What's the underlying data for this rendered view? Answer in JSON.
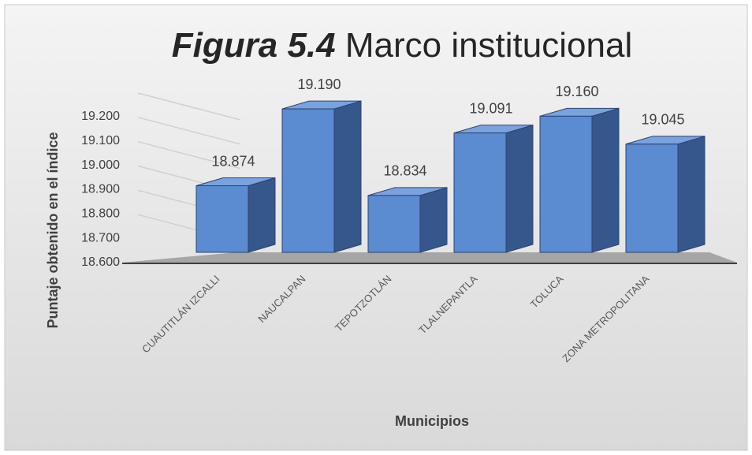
{
  "chart_data": {
    "type": "bar3d",
    "figure_label": "Figura 5.4",
    "title": "Marco institucional",
    "x_label": "Municipios",
    "y_label": "Puntaje obtenido  en el índice",
    "categories": [
      "CUAUTITLÁN IZCALLI",
      "NAUCALPAN",
      "TEPOTZOTLÁN",
      "TLALNEPANTLA",
      "TOLUCA",
      "ZONA METROPOLITANA"
    ],
    "values": [
      18.874,
      19.19,
      18.834,
      19.091,
      19.16,
      19.045
    ],
    "value_labels": [
      "18.874",
      "19.190",
      "18.834",
      "19.091",
      "19.160",
      "19.045"
    ],
    "color": "#5b8bd0",
    "ylim": [
      18.6,
      19.2
    ],
    "yticks": [
      {
        "value": 18.6,
        "label": "18.600"
      },
      {
        "value": 18.7,
        "label": "18.700"
      },
      {
        "value": 18.8,
        "label": "18.800"
      },
      {
        "value": 18.9,
        "label": "18.900"
      },
      {
        "value": 19.0,
        "label": "19.000"
      },
      {
        "value": 19.1,
        "label": "19.100"
      },
      {
        "value": 19.2,
        "label": "19.200"
      }
    ],
    "grid": true
  }
}
